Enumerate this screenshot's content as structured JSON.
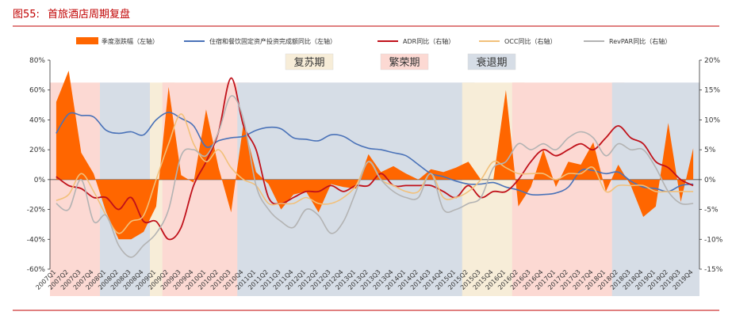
{
  "figure": {
    "number": "图55:",
    "title": "首旅酒店周期复盘",
    "colors": {
      "title": "#c00000",
      "rule": "#c00000"
    }
  },
  "chart_data": {
    "type": "combo",
    "title": "首旅酒店周期复盘",
    "categories": [
      "2007Q1",
      "2007Q2",
      "2007Q3",
      "2007Q4",
      "2008Q1",
      "2008Q2",
      "2008Q3",
      "2008Q4",
      "2009Q1",
      "2009Q2",
      "2009Q3",
      "2009Q4",
      "2010Q1",
      "2010Q2",
      "2010Q3",
      "2010Q4",
      "2011Q1",
      "2011Q2",
      "2011Q3",
      "2011Q4",
      "2012Q1",
      "2012Q2",
      "2012Q3",
      "2012Q4",
      "2013Q1",
      "2013Q2",
      "2013Q3",
      "2013Q4",
      "2014Q1",
      "2014Q2",
      "2014Q3",
      "2014Q4",
      "2015Q1",
      "2015Q2",
      "2015Q3",
      "2015Q4",
      "2016Q1",
      "2016Q2",
      "2016Q3",
      "2016Q4",
      "2017Q1",
      "2017Q2",
      "2017Q3",
      "2017Q4",
      "2018Q1",
      "2018Q2",
      "2018Q3",
      "2018Q4",
      "2019Q1",
      "2019Q2",
      "2019Q3",
      "2019Q4"
    ],
    "left_axis": {
      "min": -60,
      "max": 80,
      "ticks": [
        -60,
        -40,
        -20,
        0,
        20,
        40,
        60,
        80
      ],
      "unit": "%"
    },
    "right_axis": {
      "min": -15,
      "max": 20,
      "ticks": [
        -15,
        -10,
        -5,
        0,
        5,
        10,
        15,
        20
      ],
      "unit": "%"
    },
    "phases": [
      {
        "label": "繁荣期",
        "from": "2007Q1",
        "to": "2007Q4",
        "color": "#fcd9d3"
      },
      {
        "label": "衰退期",
        "from": "2008Q1",
        "to": "2008Q4",
        "color": "#d6dde6"
      },
      {
        "label": "复苏期",
        "from": "2009Q1",
        "to": "2009Q2",
        "color": "#f7edd8"
      },
      {
        "label": "繁荣期",
        "from": "2009Q2",
        "to": "2010Q4",
        "color": "#fcd9d3"
      },
      {
        "label": "衰退期",
        "from": "2010Q4",
        "to": "2015Q2",
        "color": "#d6dde6"
      },
      {
        "label": "复苏期",
        "from": "2015Q2",
        "to": "2016Q2",
        "color": "#f7edd8"
      },
      {
        "label": "繁荣期",
        "from": "2016Q2",
        "to": "2018Q2",
        "color": "#fcd9d3"
      },
      {
        "label": "衰退期",
        "from": "2018Q2",
        "to": "2019Q4",
        "color": "#d6dde6"
      }
    ],
    "phase_legend": [
      {
        "label": "复苏期",
        "color": "#f7edd8"
      },
      {
        "label": "繁荣期",
        "color": "#fcd9d3"
      },
      {
        "label": "衰退期",
        "color": "#d6dde6"
      }
    ],
    "series": [
      {
        "name": "季度涨跌幅（左轴）",
        "kind": "area",
        "axis": "left",
        "color": "#ff6600",
        "values": [
          52,
          73,
          18,
          4,
          -22,
          -40,
          -40,
          -35,
          -18,
          62,
          3,
          -2,
          47,
          8,
          -22,
          38,
          5,
          -3,
          -20,
          -10,
          -8,
          -22,
          -3,
          -5,
          -6,
          17,
          5,
          9,
          4,
          0,
          7,
          5,
          8,
          12,
          0,
          0,
          60,
          -18,
          -5,
          20,
          -5,
          12,
          10,
          25,
          -8,
          10,
          -4,
          -25,
          -18,
          38,
          -15,
          21
        ]
      },
      {
        "name": "住宿和餐饮固定资产投资完成额同比（左轴）",
        "kind": "line",
        "axis": "left",
        "color": "#4a72b8",
        "values": [
          31,
          44,
          43,
          42,
          33,
          31,
          32,
          30,
          40,
          45,
          41,
          36,
          22,
          26,
          28,
          29,
          33,
          35,
          34,
          28,
          27,
          26,
          30,
          29,
          24,
          21,
          20,
          18,
          16,
          10,
          4,
          2,
          -1,
          -3,
          -3,
          -2,
          -5,
          -7,
          -10,
          -10,
          -9,
          -5,
          6,
          6,
          4,
          5,
          -1,
          -5,
          -6,
          -8,
          -4,
          -3
        ]
      },
      {
        "name": "ADR同比（右轴）",
        "kind": "line",
        "axis": "right",
        "color": "#c0111a",
        "values": [
          0.5,
          -1,
          -1.5,
          -3,
          -3,
          -5,
          -3,
          -7,
          -7,
          -10,
          -8,
          -1,
          3,
          8,
          17,
          9,
          5,
          -3,
          -4,
          -3,
          -2,
          -2,
          -1,
          -2,
          -1,
          -1,
          1,
          -1,
          -1,
          -1,
          -1,
          -2,
          -3,
          -1,
          -3,
          -2,
          -2,
          0,
          3,
          5,
          4,
          5,
          6,
          5,
          7,
          9,
          7,
          6,
          3,
          2,
          0,
          -1
        ]
      },
      {
        "name": "OCC同比（右轴）",
        "kind": "line",
        "axis": "right",
        "color": "#f2c07a",
        "values": [
          -3.5,
          -2.5,
          1,
          -2,
          -6,
          -9,
          -7,
          -6,
          0,
          6,
          11,
          6,
          3,
          5,
          2,
          0,
          -1,
          -4,
          -4,
          -4,
          -3,
          -4,
          -4,
          -3,
          -1,
          3,
          0,
          -1,
          -2,
          -2,
          1,
          -3,
          -3,
          -2,
          0,
          3,
          2,
          1,
          1,
          1,
          0,
          1,
          1,
          2,
          -2,
          -1,
          -1,
          -1,
          -2,
          -2,
          -2,
          -2
        ]
      },
      {
        "name": "RevPAR同比（右轴）",
        "kind": "line",
        "axis": "right",
        "color": "#b3b3b3",
        "values": [
          -4,
          -5,
          0,
          -7,
          -6,
          -11,
          -13,
          -11,
          -9,
          -5,
          4,
          5,
          4,
          8,
          14,
          10,
          -1,
          -5,
          -7,
          -8,
          -5,
          -6,
          -9,
          -7,
          -2,
          3,
          0,
          -2,
          -3,
          -3,
          1,
          -5,
          -5,
          -4,
          -3,
          2,
          3,
          6,
          5,
          6,
          5,
          7,
          8,
          7,
          4,
          6,
          5,
          5,
          2,
          -2,
          -4,
          -4
        ]
      }
    ]
  }
}
